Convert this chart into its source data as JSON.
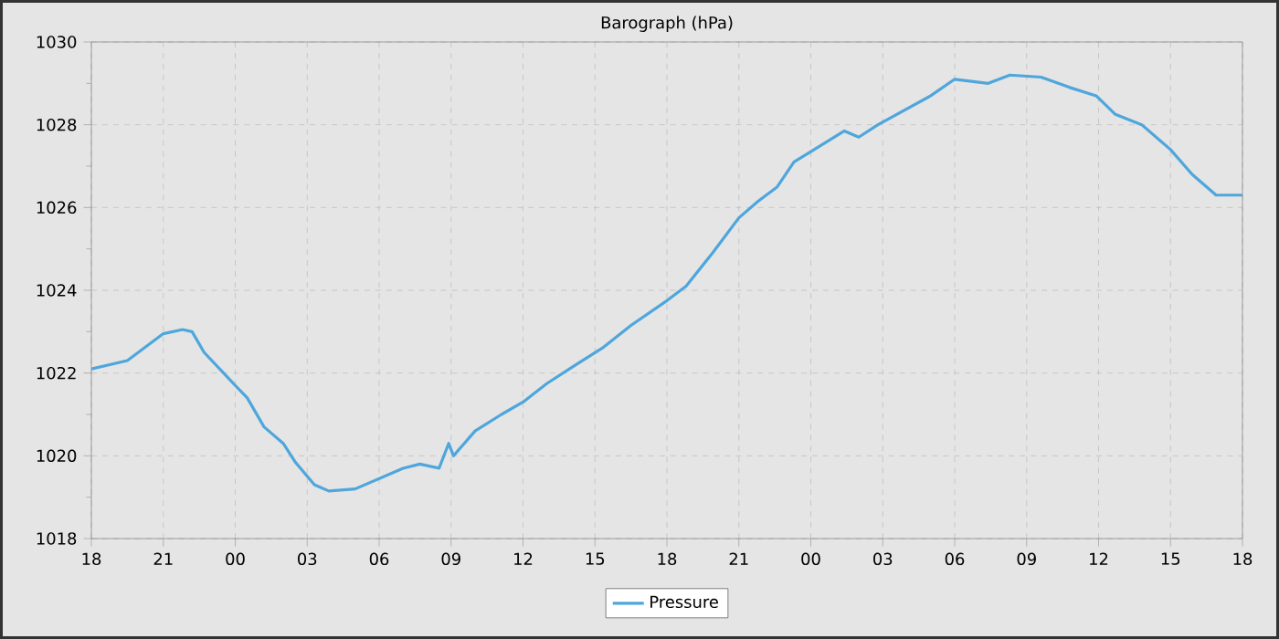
{
  "chart_data": {
    "type": "line",
    "title": "Barograph (hPa)",
    "x": [
      18,
      19.5,
      21,
      21.8,
      22.2,
      22.7,
      24,
      24.5,
      25.2,
      26,
      26.5,
      27.3,
      27.9,
      29,
      30,
      31,
      31.7,
      32.5,
      32.9,
      33.1,
      34,
      35.1,
      36,
      37,
      38.2,
      39.3,
      40.5,
      42,
      42.8,
      43.9,
      45,
      45.8,
      46.6,
      47.3,
      48,
      49.4,
      50,
      50.8,
      51.9,
      53,
      54,
      55.4,
      56.3,
      57.6,
      58.8,
      59.9,
      60.7,
      61.8,
      63,
      63.9,
      64.9,
      66
    ],
    "series": [
      {
        "name": "Pressure",
        "color": "#4ea6dc",
        "values": [
          1022.1,
          1022.3,
          1022.95,
          1023.05,
          1023.0,
          1022.5,
          1021.7,
          1021.4,
          1020.7,
          1020.3,
          1019.85,
          1019.3,
          1019.15,
          1019.2,
          1019.45,
          1019.7,
          1019.8,
          1019.7,
          1020.3,
          1020.0,
          1020.6,
          1021.0,
          1021.3,
          1021.75,
          1022.2,
          1022.6,
          1023.15,
          1023.75,
          1024.1,
          1024.9,
          1025.75,
          1026.15,
          1026.5,
          1027.1,
          1027.35,
          1027.85,
          1027.7,
          1028.0,
          1028.35,
          1028.7,
          1029.1,
          1029.0,
          1029.2,
          1029.15,
          1028.9,
          1028.7,
          1028.25,
          1028.0,
          1027.4,
          1026.8,
          1026.3,
          1026.3
        ]
      }
    ],
    "xlim": [
      18,
      66
    ],
    "xticks": [
      {
        "value": 18,
        "label": "18"
      },
      {
        "value": 21,
        "label": "21"
      },
      {
        "value": 24,
        "label": "00"
      },
      {
        "value": 27,
        "label": "03"
      },
      {
        "value": 30,
        "label": "06"
      },
      {
        "value": 33,
        "label": "09"
      },
      {
        "value": 36,
        "label": "12"
      },
      {
        "value": 39,
        "label": "15"
      },
      {
        "value": 42,
        "label": "18"
      },
      {
        "value": 45,
        "label": "21"
      },
      {
        "value": 48,
        "label": "00"
      },
      {
        "value": 51,
        "label": "03"
      },
      {
        "value": 54,
        "label": "06"
      },
      {
        "value": 57,
        "label": "09"
      },
      {
        "value": 60,
        "label": "12"
      },
      {
        "value": 63,
        "label": "15"
      },
      {
        "value": 66,
        "label": "18"
      }
    ],
    "ylim": [
      1018,
      1030
    ],
    "yticks": [
      1018,
      1020,
      1022,
      1024,
      1026,
      1028,
      1030
    ],
    "grid": true,
    "legend": "bottom",
    "marker": "none",
    "line_style": "solid"
  }
}
